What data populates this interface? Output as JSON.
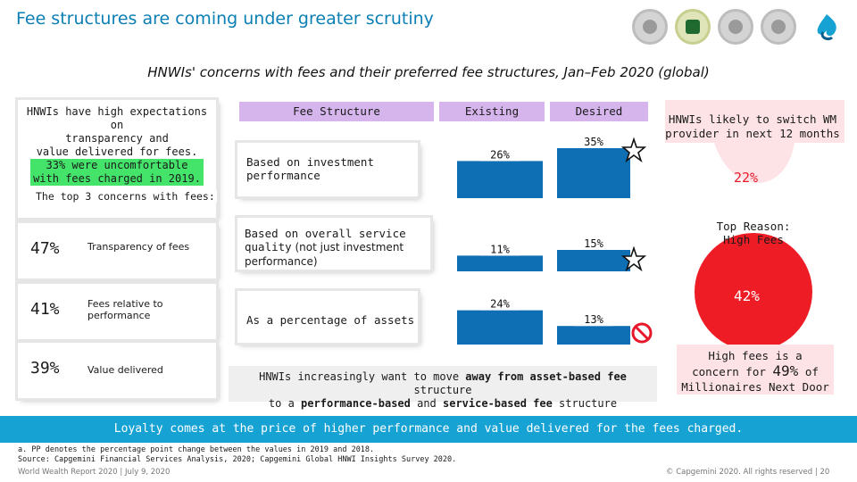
{
  "page": {
    "title": "Fee structures are coming under greater scrutiny",
    "subtitle": "HNWIs' concerns with fees and their preferred fee structures, Jan–Feb 2020 (global)"
  },
  "left_panel": {
    "line1": "HNWIs have high expectations on",
    "line2": "transparency and",
    "line3": "value delivered for fees.",
    "highlight_line1": "33% were uncomfortable",
    "highlight_line2": "with fees charged in 2019.",
    "top3_label": "The top 3 concerns with fees:",
    "concerns": [
      {
        "pct": "47%",
        "label": "Transparency of fees"
      },
      {
        "pct": "41%",
        "label": "Fees relative to performance"
      },
      {
        "pct": "39%",
        "label": "Value delivered"
      }
    ]
  },
  "table": {
    "col_fee_structure": "Fee Structure",
    "col_existing": "Existing",
    "col_desired": "Desired",
    "rows": [
      {
        "label": "Based on investment performance",
        "existing": "26%",
        "desired": "35%"
      },
      {
        "label_strong": "Based on overall service quality",
        "label_rest": " (not just investment performance)",
        "existing": "11%",
        "desired": "15%"
      },
      {
        "label": "As a percentage of assets",
        "existing": "24%",
        "desired": "13%"
      }
    ],
    "move_note_line1_a": "HNWIs increasingly want to move ",
    "move_note_line1_b": "away from asset-based fee",
    "move_note_line1_c": " structure",
    "move_note_line2_a": "to a ",
    "move_note_line2_b": "performance-based",
    "move_note_line2_c": " and ",
    "move_note_line2_d": "service-based fee",
    "move_note_line2_e": " structure"
  },
  "chart_data": {
    "type": "bar",
    "categories": [
      "Based on investment performance",
      "Based on overall service quality (not just investment performance)",
      "As a percentage of assets"
    ],
    "series": [
      {
        "name": "Existing",
        "values": [
          26,
          11,
          24
        ]
      },
      {
        "name": "Desired",
        "values": [
          35,
          15,
          13
        ]
      }
    ],
    "bar_color": "#0e6fb5",
    "unit": "%"
  },
  "right_panel": {
    "switch_label": "HNWIs likely to switch WM provider in next 12 months",
    "switch_pct": "22%",
    "top_reason_line1": "Top Reason:",
    "top_reason_line2": "High Fees",
    "top_reason_pct": "42%",
    "high_fees_line1": "High fees is a",
    "high_fees_line2a": "concern for ",
    "high_fees_big": "49%",
    "high_fees_line2b": " of",
    "high_fees_line3": "Millionaires Next Door"
  },
  "banner": {
    "text": "Loyalty comes at the price of higher performance and value delivered for the fees charged."
  },
  "footnotes": {
    "note": "a. PP denotes the percentage point change between the values in 2019 and 2018.",
    "source": "Source:   Capgemini Financial Services Analysis, 2020; Capgemini Global HNWI Insights Survey 2020."
  },
  "footer": {
    "left": "World Wealth Report 2020 | July 9, 2020",
    "right": "© Capgemini 2020. All rights reserved  |    20"
  },
  "colors": {
    "title": "#0b7fb4",
    "header_purple": "#d6b4ec",
    "highlight_green": "#44e36a",
    "banner_blue": "#17a2d4",
    "alert_red": "#e8182a"
  }
}
